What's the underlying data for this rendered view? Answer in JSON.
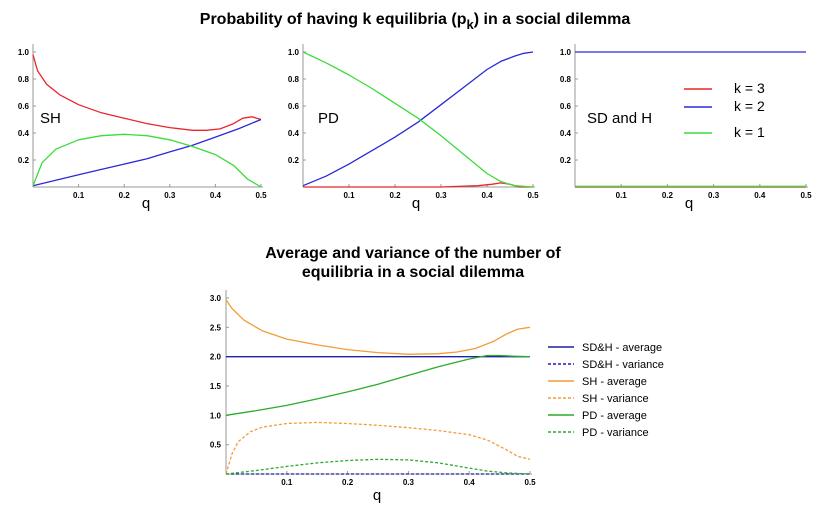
{
  "titles": {
    "top": "Probability of having k equilibria (p",
    "top_sub": "k",
    "top_end": ") in a social dilemma",
    "bottom_line1": "Average and variance of the number of",
    "bottom_line2": "equilibria in a social dilemma"
  },
  "colors": {
    "red": "#e8262b",
    "blue": "#2a2ad6",
    "green": "#3bdc3b",
    "orange": "#f39c39",
    "dkgreen": "#2cab2c",
    "navy": "#1f1fa8"
  },
  "chart_data": [
    {
      "type": "line",
      "panel": "SH",
      "xlabel": "q",
      "ylabel": "",
      "xlim": [
        0,
        0.5
      ],
      "ylim": [
        0,
        1.0
      ],
      "xticks": [
        0.1,
        0.2,
        0.3,
        0.4,
        0.5
      ],
      "yticks": [
        0.2,
        0.4,
        0.6,
        0.8,
        1.0
      ],
      "series": [
        {
          "name": "k = 3",
          "color": "red",
          "x": [
            0.0,
            0.01,
            0.03,
            0.06,
            0.1,
            0.15,
            0.2,
            0.25,
            0.3,
            0.35,
            0.38,
            0.41,
            0.44,
            0.46,
            0.48,
            0.5
          ],
          "y": [
            0.98,
            0.86,
            0.76,
            0.68,
            0.61,
            0.55,
            0.51,
            0.47,
            0.44,
            0.42,
            0.42,
            0.43,
            0.47,
            0.51,
            0.52,
            0.5
          ]
        },
        {
          "name": "k = 2",
          "color": "blue",
          "x": [
            0.0,
            0.05,
            0.1,
            0.15,
            0.2,
            0.25,
            0.3,
            0.35,
            0.4,
            0.45,
            0.5
          ],
          "y": [
            0.01,
            0.05,
            0.09,
            0.13,
            0.17,
            0.21,
            0.26,
            0.31,
            0.37,
            0.43,
            0.5
          ]
        },
        {
          "name": "k = 1",
          "color": "green",
          "x": [
            0.0,
            0.02,
            0.05,
            0.1,
            0.15,
            0.2,
            0.25,
            0.3,
            0.35,
            0.4,
            0.44,
            0.47,
            0.5
          ],
          "y": [
            0.01,
            0.18,
            0.28,
            0.35,
            0.38,
            0.39,
            0.38,
            0.35,
            0.3,
            0.24,
            0.16,
            0.06,
            0.0
          ]
        }
      ]
    },
    {
      "type": "line",
      "panel": "PD",
      "xlabel": "q",
      "ylabel": "",
      "xlim": [
        0,
        0.5
      ],
      "ylim": [
        0,
        1.0
      ],
      "xticks": [
        0.1,
        0.2,
        0.3,
        0.4,
        0.5
      ],
      "yticks": [
        0.2,
        0.4,
        0.6,
        0.8,
        1.0
      ],
      "series": [
        {
          "name": "k = 3",
          "color": "red",
          "x": [
            0.0,
            0.1,
            0.2,
            0.3,
            0.38,
            0.41,
            0.43,
            0.45,
            0.47,
            0.5
          ],
          "y": [
            0.0,
            0.0,
            0.0,
            0.0,
            0.01,
            0.02,
            0.03,
            0.02,
            0.0,
            0.0
          ]
        },
        {
          "name": "k = 2",
          "color": "blue",
          "x": [
            0.0,
            0.05,
            0.1,
            0.15,
            0.2,
            0.25,
            0.3,
            0.35,
            0.4,
            0.43,
            0.46,
            0.48,
            0.5
          ],
          "y": [
            0.01,
            0.08,
            0.17,
            0.27,
            0.37,
            0.48,
            0.61,
            0.74,
            0.87,
            0.93,
            0.97,
            0.99,
            1.0
          ]
        },
        {
          "name": "k = 1",
          "color": "green",
          "x": [
            0.0,
            0.05,
            0.1,
            0.15,
            0.2,
            0.25,
            0.3,
            0.35,
            0.4,
            0.43,
            0.46,
            0.5
          ],
          "y": [
            1.0,
            0.92,
            0.83,
            0.73,
            0.62,
            0.51,
            0.38,
            0.24,
            0.1,
            0.04,
            0.01,
            0.0
          ]
        }
      ]
    },
    {
      "type": "line",
      "panel": "SD and H",
      "xlabel": "q",
      "ylabel": "",
      "xlim": [
        0,
        0.5
      ],
      "ylim": [
        0,
        1.0
      ],
      "xticks": [
        0.1,
        0.2,
        0.3,
        0.4,
        0.5
      ],
      "yticks": [
        0.2,
        0.4,
        0.6,
        0.8,
        1.0
      ],
      "legend": [
        {
          "label": "k = 3",
          "color": "red"
        },
        {
          "label": "k = 2",
          "color": "blue"
        },
        {
          "label": "k = 1",
          "color": "green"
        }
      ],
      "series": [
        {
          "name": "k = 3",
          "color": "red",
          "x": [
            0.0,
            0.5
          ],
          "y": [
            0.0,
            0.0
          ]
        },
        {
          "name": "k = 2",
          "color": "blue",
          "x": [
            0.0,
            0.5
          ],
          "y": [
            1.0,
            1.0
          ]
        },
        {
          "name": "k = 1",
          "color": "green",
          "x": [
            0.0,
            0.5
          ],
          "y": [
            0.005,
            0.005
          ]
        }
      ]
    },
    {
      "type": "line",
      "panel": "average-variance",
      "xlabel": "q",
      "ylabel": "",
      "xlim": [
        0,
        0.5
      ],
      "ylim": [
        0,
        3.0
      ],
      "xticks": [
        0.1,
        0.2,
        0.3,
        0.4,
        0.5
      ],
      "yticks": [
        0.5,
        1.0,
        1.5,
        2.0,
        2.5,
        3.0
      ],
      "legend": [
        {
          "label": "SD&H - average",
          "color": "navy",
          "dash": false
        },
        {
          "label": "SD&H - variance",
          "color": "navy",
          "dash": true
        },
        {
          "label": "SH - average",
          "color": "orange",
          "dash": false
        },
        {
          "label": "SH - variance",
          "color": "orange",
          "dash": true
        },
        {
          "label": "PD - average",
          "color": "dkgreen",
          "dash": false
        },
        {
          "label": "PD - variance",
          "color": "dkgreen",
          "dash": true
        }
      ],
      "series": [
        {
          "name": "SD&H - average",
          "color": "navy",
          "dash": false,
          "x": [
            0.0,
            0.5
          ],
          "y": [
            2.0,
            2.0
          ]
        },
        {
          "name": "SD&H - variance",
          "color": "navy",
          "dash": true,
          "x": [
            0.0,
            0.5
          ],
          "y": [
            0.0,
            0.0
          ]
        },
        {
          "name": "SH - average",
          "color": "orange",
          "dash": false,
          "x": [
            0.0,
            0.01,
            0.03,
            0.06,
            0.1,
            0.15,
            0.2,
            0.25,
            0.3,
            0.35,
            0.38,
            0.41,
            0.44,
            0.46,
            0.48,
            0.5
          ],
          "y": [
            2.97,
            2.82,
            2.62,
            2.44,
            2.3,
            2.2,
            2.12,
            2.07,
            2.04,
            2.05,
            2.08,
            2.14,
            2.26,
            2.38,
            2.47,
            2.5
          ]
        },
        {
          "name": "SH - variance",
          "color": "orange",
          "dash": true,
          "x": [
            0.0,
            0.01,
            0.02,
            0.04,
            0.06,
            0.1,
            0.15,
            0.2,
            0.25,
            0.3,
            0.35,
            0.4,
            0.43,
            0.46,
            0.48,
            0.5
          ],
          "y": [
            0.0,
            0.35,
            0.55,
            0.72,
            0.8,
            0.86,
            0.88,
            0.86,
            0.83,
            0.79,
            0.74,
            0.67,
            0.58,
            0.42,
            0.3,
            0.25
          ]
        },
        {
          "name": "PD - average",
          "color": "dkgreen",
          "dash": false,
          "x": [
            0.0,
            0.05,
            0.1,
            0.15,
            0.2,
            0.25,
            0.3,
            0.35,
            0.4,
            0.43,
            0.45,
            0.47,
            0.5
          ],
          "y": [
            1.0,
            1.08,
            1.17,
            1.28,
            1.4,
            1.53,
            1.68,
            1.83,
            1.96,
            2.02,
            2.02,
            2.01,
            2.0
          ]
        },
        {
          "name": "PD - variance",
          "color": "dkgreen",
          "dash": true,
          "x": [
            0.0,
            0.05,
            0.1,
            0.15,
            0.2,
            0.25,
            0.3,
            0.35,
            0.4,
            0.43,
            0.46,
            0.5
          ],
          "y": [
            0.0,
            0.06,
            0.13,
            0.19,
            0.23,
            0.25,
            0.24,
            0.19,
            0.1,
            0.05,
            0.02,
            0.0
          ]
        }
      ]
    }
  ]
}
